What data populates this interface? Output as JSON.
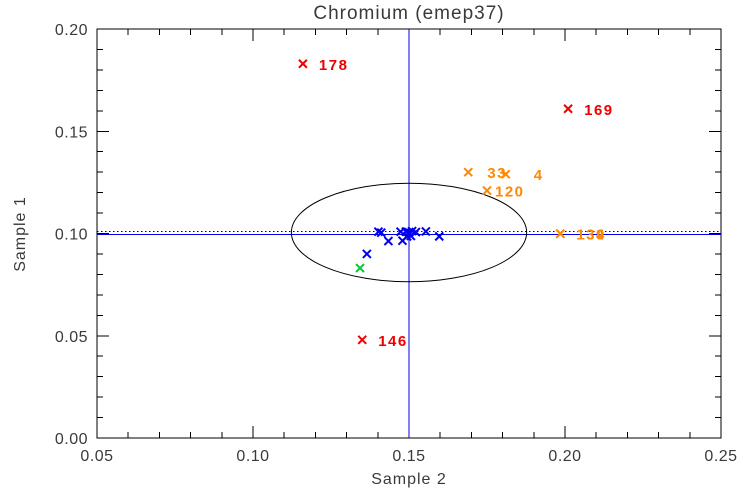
{
  "chart_data": {
    "type": "scatter",
    "title": "Chromium (emep37)",
    "xlabel": "Sample 2",
    "ylabel": "Sample 1",
    "xlim": [
      0.05,
      0.25
    ],
    "ylim": [
      0.0,
      0.2
    ],
    "x_ticks": [
      0.05,
      0.1,
      0.15,
      0.2,
      0.25
    ],
    "x_tick_labels": [
      "0.05",
      "0.10",
      "0.15",
      "0.20",
      "0.25"
    ],
    "y_ticks": [
      0.0,
      0.05,
      0.1,
      0.15,
      0.2
    ],
    "y_tick_labels": [
      "0.00",
      "0.05",
      "0.10",
      "0.15",
      "0.20"
    ],
    "minor_tick_step": 0.01,
    "grid": false,
    "legend": "none",
    "frame_color": "#000000",
    "tick_label_color": "#3a3a3a",
    "reference_lines": {
      "vertical": {
        "x": 0.15,
        "style": "solid",
        "color": "#0000ee"
      },
      "horizontal": {
        "y": 0.1,
        "style": "solid",
        "color": "#0000ee"
      },
      "horizontal_dotted": {
        "y": 0.1005,
        "style": "dotted",
        "color": "#000022"
      }
    },
    "confidence_ellipse": {
      "cx": 0.15,
      "cy": 0.1005,
      "rx": 0.0377,
      "ry": 0.0241,
      "color": "#000000"
    },
    "series": [
      {
        "name": "outliers-red",
        "marker": "x",
        "color": "#ee0000",
        "points": [
          {
            "x": 0.116,
            "y": 0.183,
            "label": "178"
          },
          {
            "x": 0.201,
            "y": 0.161,
            "label": "169"
          },
          {
            "x": 0.135,
            "y": 0.048,
            "label": "146"
          }
        ]
      },
      {
        "name": "flagged-orange",
        "marker": "x",
        "color": "#ff8800",
        "points": [
          {
            "x": 0.169,
            "y": 0.13,
            "label": "33",
            "label_dx": 19
          },
          {
            "x": 0.181,
            "y": 0.129,
            "label": "4",
            "label_dx": 28
          },
          {
            "x": 0.175,
            "y": 0.121,
            "label": "120",
            "label_dx": 8
          },
          {
            "x": 0.1985,
            "y": 0.0999,
            "label": "139"
          },
          {
            "x": 0.1985,
            "y": 0.0999,
            "label": "134"
          }
        ]
      },
      {
        "name": "inliers-blue",
        "marker": "x",
        "color": "#0000ee",
        "points": [
          {
            "x": 0.1402,
            "y": 0.1009
          },
          {
            "x": 0.1411,
            "y": 0.1004
          },
          {
            "x": 0.1434,
            "y": 0.0963
          },
          {
            "x": 0.1473,
            "y": 0.1009
          },
          {
            "x": 0.1479,
            "y": 0.0965
          },
          {
            "x": 0.149,
            "y": 0.1009
          },
          {
            "x": 0.15,
            "y": 0.1006
          },
          {
            "x": 0.1494,
            "y": 0.0986
          },
          {
            "x": 0.1506,
            "y": 0.0988
          },
          {
            "x": 0.151,
            "y": 0.1012
          },
          {
            "x": 0.1522,
            "y": 0.1007
          },
          {
            "x": 0.1554,
            "y": 0.101
          },
          {
            "x": 0.1597,
            "y": 0.0986
          },
          {
            "x": 0.1365,
            "y": 0.09
          }
        ]
      },
      {
        "name": "inlier-green",
        "marker": "x",
        "color": "#00cc33",
        "points": [
          {
            "x": 0.1343,
            "y": 0.0831
          }
        ]
      }
    ]
  }
}
